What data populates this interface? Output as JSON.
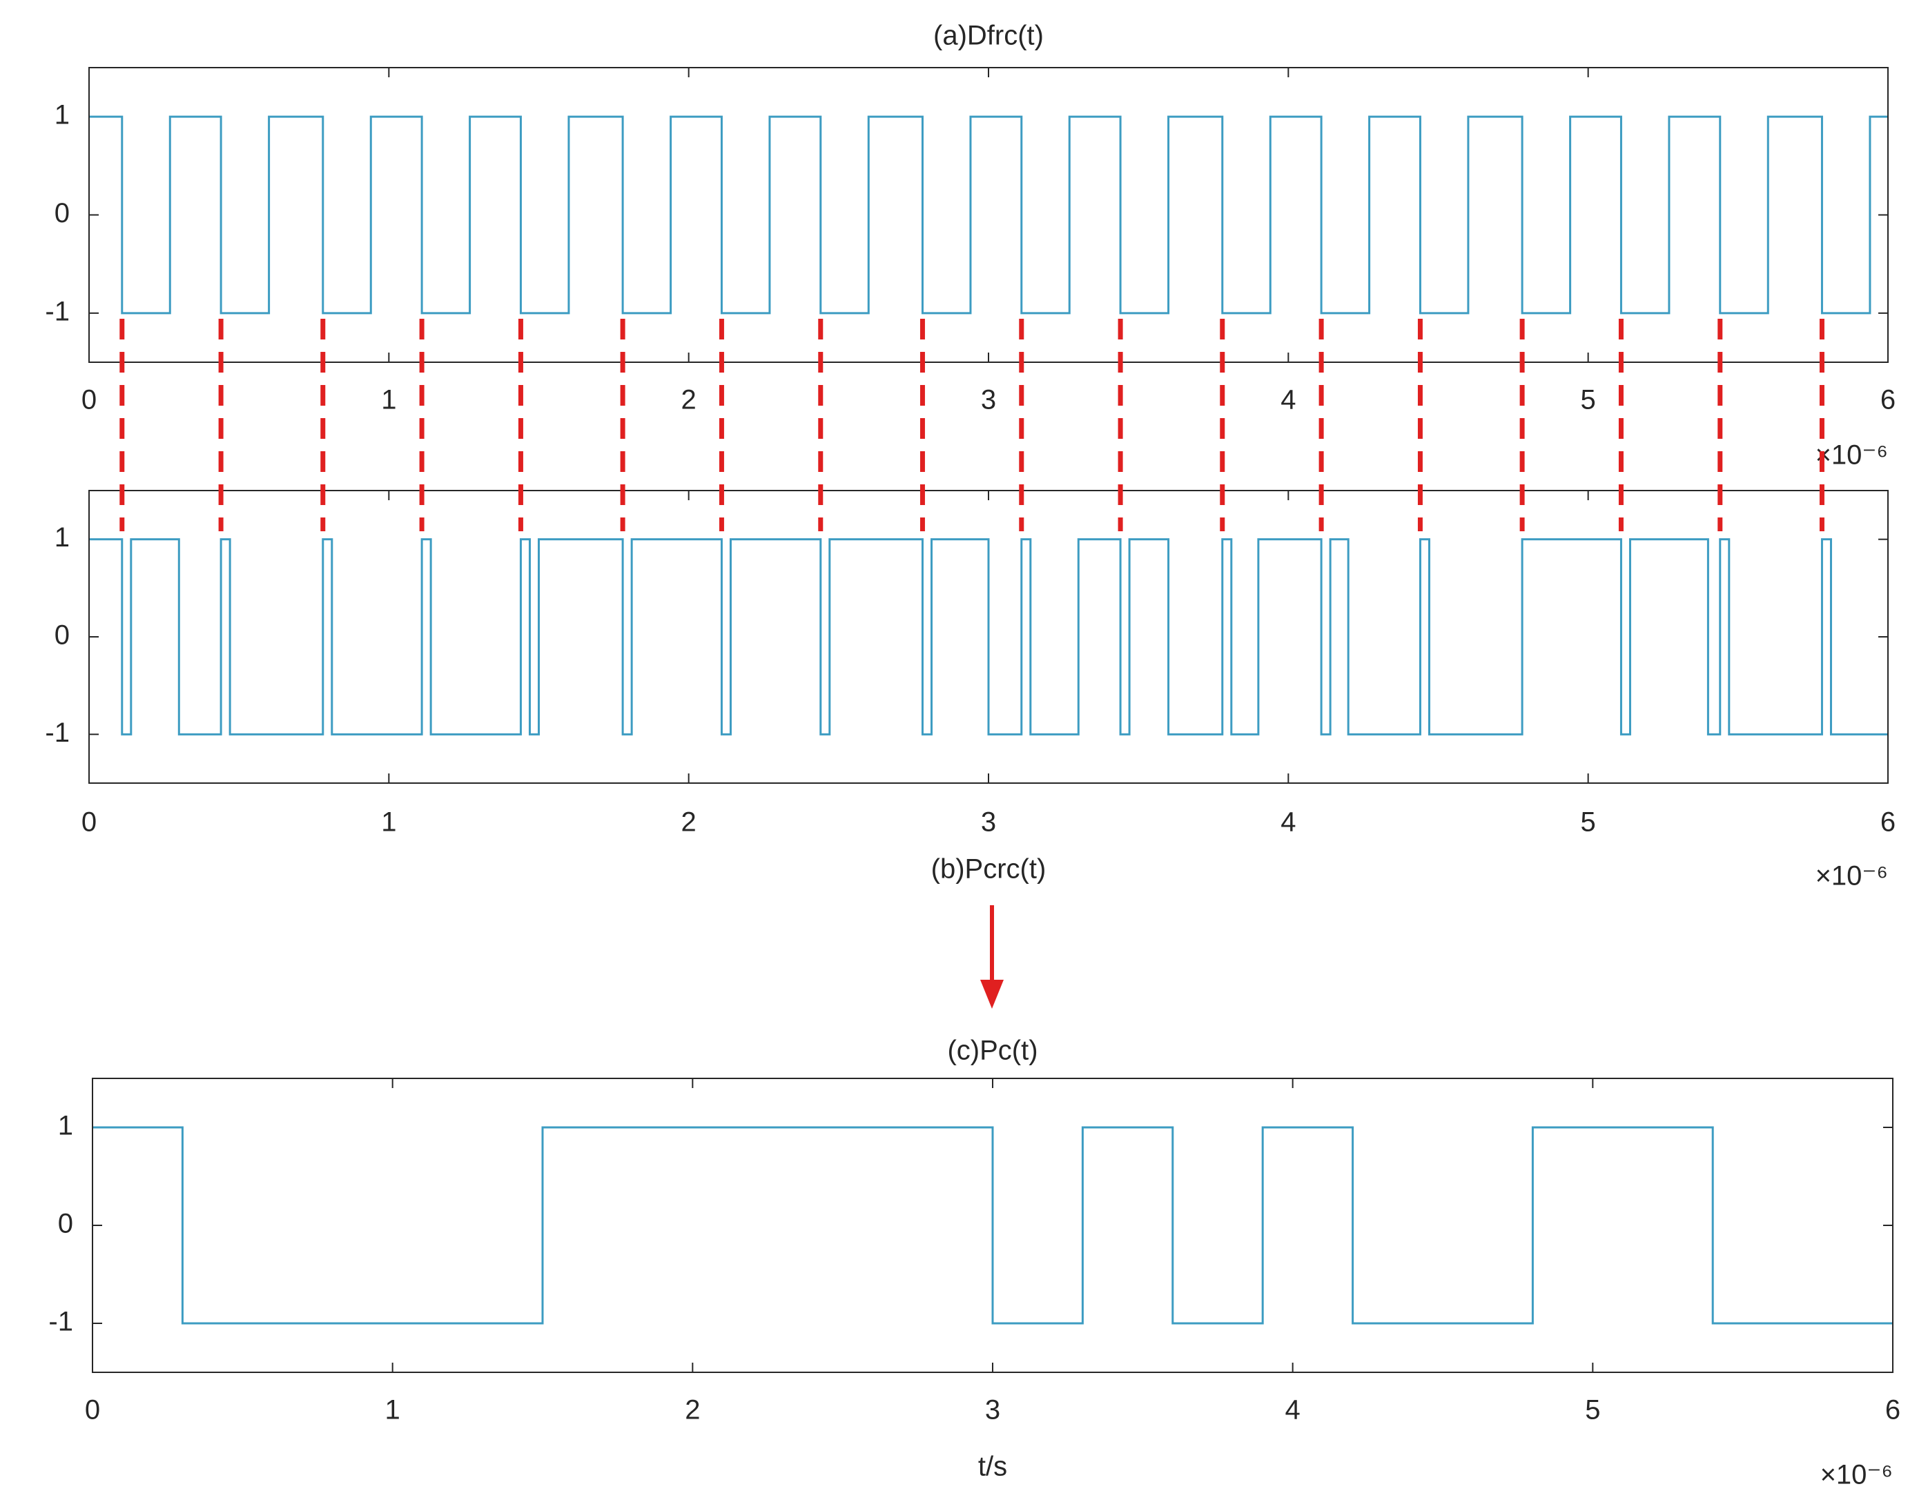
{
  "chart_data": [
    {
      "type": "line",
      "title": "(a)Dfrc(t)",
      "title_position": "top",
      "step": "post",
      "color": "#3d9cc2",
      "x": [
        0,
        0.11,
        0.27,
        0.44,
        0.6,
        0.78,
        0.94,
        1.11,
        1.27,
        1.44,
        1.6,
        1.78,
        1.94,
        2.11,
        2.27,
        2.44,
        2.6,
        2.78,
        2.94,
        3.11,
        3.27,
        3.44,
        3.6,
        3.78,
        3.94,
        4.11,
        4.27,
        4.44,
        4.6,
        4.78,
        4.94,
        5.11,
        5.27,
        5.44,
        5.6,
        5.78,
        5.94,
        6
      ],
      "values": [
        1,
        -1,
        1,
        -1,
        1,
        -1,
        1,
        -1,
        1,
        -1,
        1,
        -1,
        1,
        -1,
        1,
        -1,
        1,
        -1,
        1,
        -1,
        1,
        -1,
        1,
        -1,
        1,
        -1,
        1,
        -1,
        1,
        -1,
        1,
        -1,
        1,
        -1,
        1,
        -1,
        1,
        1
      ],
      "xlim": [
        0,
        6
      ],
      "xticks": [
        0,
        1,
        2,
        3,
        4,
        5,
        6
      ],
      "ylim": [
        -1.5,
        1.5
      ],
      "yticks": [
        -1,
        0,
        1
      ],
      "x_multiplier": "×10⁻⁶"
    },
    {
      "type": "line",
      "title": "(b)Pcrc(t)",
      "title_position": "bottom",
      "step": "post",
      "color": "#3d9cc2",
      "x": [
        0,
        0.11,
        0.14,
        0.3,
        0.44,
        0.47,
        0.78,
        0.81,
        1.11,
        1.14,
        1.44,
        1.47,
        1.5,
        1.78,
        1.81,
        2.11,
        2.14,
        2.44,
        2.47,
        2.78,
        2.81,
        3,
        3.11,
        3.14,
        3.3,
        3.44,
        3.47,
        3.6,
        3.78,
        3.81,
        3.9,
        4.11,
        4.14,
        4.2,
        4.44,
        4.47,
        4.78,
        5.11,
        5.14,
        5.4,
        5.44,
        5.47,
        5.78,
        5.81,
        6
      ],
      "values": [
        1,
        -1,
        1,
        -1,
        1,
        -1,
        1,
        -1,
        1,
        -1,
        1,
        -1,
        1,
        -1,
        1,
        -1,
        1,
        -1,
        1,
        -1,
        1,
        -1,
        1,
        -1,
        1,
        -1,
        1,
        -1,
        1,
        -1,
        1,
        -1,
        1,
        -1,
        1,
        -1,
        1,
        -1,
        1,
        -1,
        1,
        -1,
        1,
        -1,
        -1
      ],
      "xlim": [
        0,
        6
      ],
      "xticks": [
        0,
        1,
        2,
        3,
        4,
        5,
        6
      ],
      "ylim": [
        -1.5,
        1.5
      ],
      "yticks": [
        -1,
        0,
        1
      ],
      "x_multiplier": "×10⁻⁶"
    },
    {
      "type": "line",
      "title": "(c)Pc(t)",
      "title_position": "top",
      "step": "post",
      "color": "#3d9cc2",
      "xlabel": "t/s",
      "x": [
        0,
        0.3,
        1.5,
        3,
        3.3,
        3.6,
        3.9,
        4.2,
        4.8,
        5.4,
        6
      ],
      "values": [
        1,
        -1,
        1,
        -1,
        1,
        -1,
        1,
        -1,
        1,
        -1,
        -1
      ],
      "xlim": [
        0,
        6
      ],
      "xticks": [
        0,
        1,
        2,
        3,
        4,
        5,
        6
      ],
      "ylim": [
        -1.5,
        1.5
      ],
      "yticks": [
        -1,
        0,
        1
      ],
      "x_multiplier": "×10⁻⁶"
    }
  ]
}
